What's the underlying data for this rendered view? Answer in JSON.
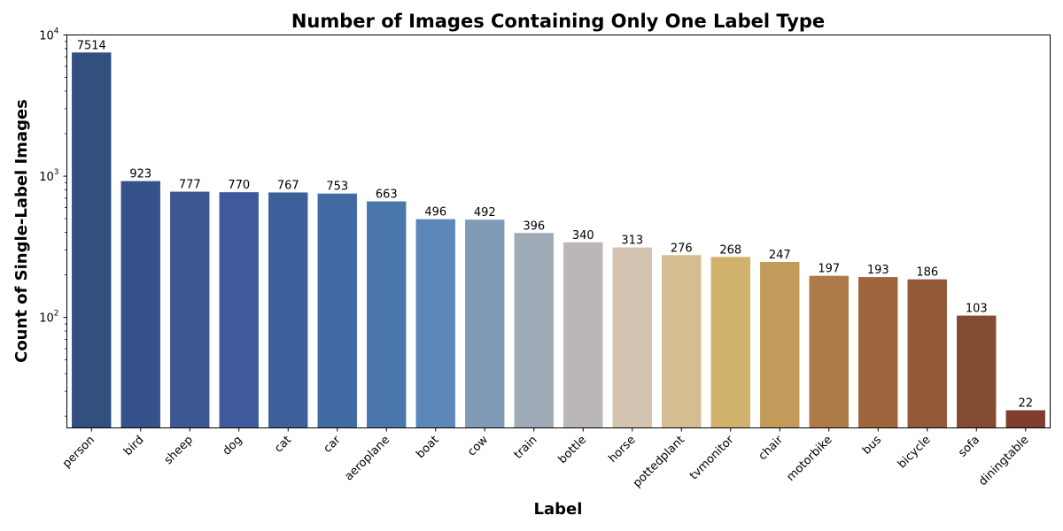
{
  "chart_data": {
    "type": "bar",
    "title": "Number of Images Containing Only One Label Type",
    "xlabel": "Label",
    "ylabel": "Count of Single-Label Images",
    "y_scale": "log",
    "ylim": [
      16.5,
      10000
    ],
    "y_ticks": [
      {
        "base": "10",
        "exp": "2",
        "value": 100
      },
      {
        "base": "10",
        "exp": "3",
        "value": 1000
      },
      {
        "base": "10",
        "exp": "4",
        "value": 10000
      }
    ],
    "grid": false,
    "legend": "none",
    "categories": [
      "person",
      "bird",
      "sheep",
      "dog",
      "cat",
      "car",
      "aeroplane",
      "boat",
      "cow",
      "train",
      "bottle",
      "horse",
      "pottedplant",
      "tvmonitor",
      "chair",
      "motorbike",
      "bus",
      "bicycle",
      "sofa",
      "diningtable"
    ],
    "values": [
      7514,
      923,
      777,
      770,
      767,
      753,
      663,
      496,
      492,
      396,
      340,
      313,
      276,
      268,
      247,
      197,
      193,
      186,
      103,
      22
    ],
    "value_labels": [
      "7514",
      "923",
      "777",
      "770",
      "767",
      "753",
      "663",
      "496",
      "492",
      "396",
      "340",
      "313",
      "276",
      "268",
      "247",
      "197",
      "193",
      "186",
      "103",
      "22"
    ],
    "colors": [
      "#324f80",
      "#36528b",
      "#3d5890",
      "#3f5a9c",
      "#3d609a",
      "#426aa3",
      "#4b76ab",
      "#5d86b9",
      "#7f9bb8",
      "#a0abb8",
      "#bbb7b8",
      "#d5c3b2",
      "#d5bc91",
      "#d0b26d",
      "#c29a59",
      "#ae7a4a",
      "#9f653c",
      "#915938",
      "#844b33",
      "#7e402d"
    ]
  }
}
